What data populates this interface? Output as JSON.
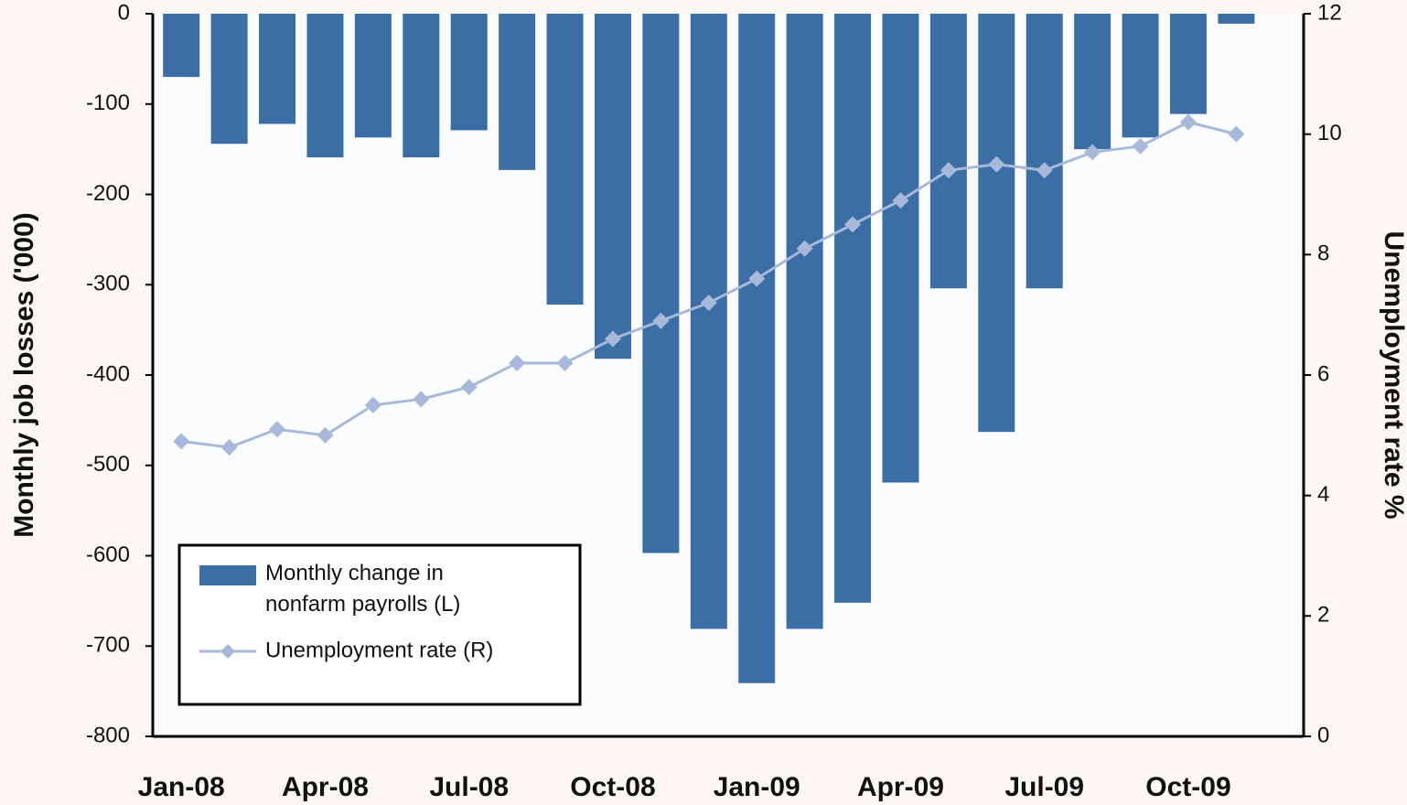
{
  "chart_data": {
    "type": "bar_line",
    "categories": [
      "Jan-08",
      null,
      null,
      "Apr-08",
      null,
      null,
      "Jul-08",
      null,
      null,
      "Oct-08",
      null,
      null,
      "Jan-09",
      null,
      null,
      "Apr-09",
      null,
      null,
      "Jul-09",
      null,
      null,
      "Oct-09",
      null
    ],
    "series": [
      {
        "name": "Monthly change in nonfarm payrolls (L)",
        "type": "bar",
        "color": "#3a6ea5",
        "values": [
          -70,
          -144,
          -122,
          -159,
          -137,
          -159,
          -129,
          -173,
          -322,
          -382,
          -597,
          -681,
          -741,
          -681,
          -652,
          -519,
          -304,
          -463,
          -304,
          -150,
          -137,
          -111,
          -11
        ]
      },
      {
        "name": "Unemployment rate (R)",
        "type": "line",
        "axis": "y2",
        "color": "#a8b8da",
        "values": [
          4.9,
          4.8,
          5.1,
          5.0,
          5.5,
          5.6,
          5.8,
          6.2,
          6.2,
          6.6,
          6.9,
          7.2,
          7.6,
          8.1,
          8.5,
          8.9,
          9.4,
          9.5,
          9.4,
          9.7,
          9.8,
          10.2,
          10.0
        ]
      }
    ],
    "ylabel": "Monthly job losses ('000)",
    "y2label": "Unemployment rate %",
    "ylim": [
      -800,
      0
    ],
    "yticks": [
      0,
      -100,
      -200,
      -300,
      -400,
      -500,
      -600,
      -700,
      -800
    ],
    "y2lim": [
      0,
      12
    ],
    "y2ticks": [
      0,
      2,
      4,
      6,
      8,
      10,
      12
    ],
    "legend": "lower left"
  }
}
